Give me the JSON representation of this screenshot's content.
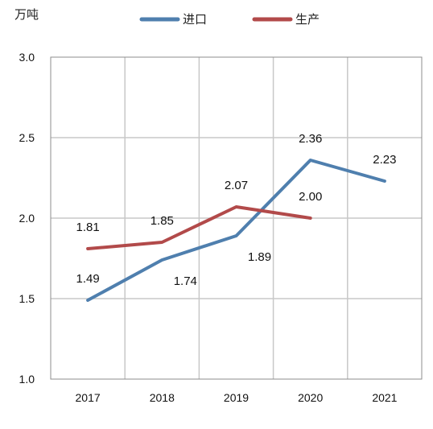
{
  "chart_data": {
    "type": "line",
    "categories": [
      "2017",
      "2018",
      "2019",
      "2020",
      "2021"
    ],
    "ylabel": "万吨",
    "ylim": [
      1.0,
      3.0
    ],
    "yticks": [
      "1.0",
      "1.5",
      "2.0",
      "2.5",
      "3.0"
    ],
    "grid": true,
    "legend_position": "top",
    "series": [
      {
        "name": "进口",
        "color": "#4f7fae",
        "values": [
          1.49,
          1.74,
          1.89,
          2.36,
          2.23
        ],
        "labels": [
          "1.49",
          "1.74",
          "1.89",
          "2.36",
          "2.23"
        ]
      },
      {
        "name": "生产",
        "color": "#b24a4a",
        "values": [
          1.81,
          1.85,
          2.07,
          2.0,
          null
        ],
        "labels": [
          "1.81",
          "1.85",
          "2.07",
          "2.00",
          ""
        ]
      }
    ]
  }
}
